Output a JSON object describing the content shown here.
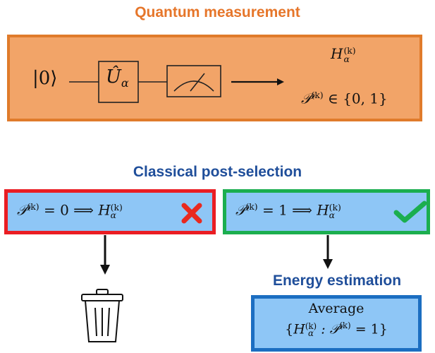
{
  "quantum_measurement": {
    "title": "Quantum measurement",
    "ket": "|0⟩",
    "unitary": "Û",
    "unitary_sub": "α",
    "output_h": "H",
    "output_h_sup": "(k)",
    "output_h_sub": "α",
    "output_p": "𝒫",
    "output_p_sup": "(k)",
    "output_p_rest": "∈ {0, 1}"
  },
  "post_selection": {
    "title": "Classical post-selection",
    "reject": {
      "p": "𝒫",
      "sup": "(k)",
      "rel": "= 0 ⟹",
      "h": "H",
      "h_sup": "(k)",
      "h_sub": "α"
    },
    "accept": {
      "p": "𝒫",
      "sup": "(k)",
      "rel": "= 1 ⟹",
      "h": "H",
      "h_sup": "(k)",
      "h_sub": "α"
    }
  },
  "energy_estimation": {
    "title": "Energy estimation",
    "line1": "Average",
    "line2_open": "{",
    "line2_h": "H",
    "line2_h_sup": "(k)",
    "line2_h_sub": "α",
    "line2_mid": ": 𝒫",
    "line2_p_sup": "(k)",
    "line2_close": "= 1}"
  },
  "colors": {
    "orange_title": "#E6762A",
    "blue_title": "#1F4E9A",
    "orange_fill": "#F2A468",
    "orange_border": "#E07B2B",
    "blue_fill": "#8EC6F6",
    "red_border": "#EA1D23",
    "green_border": "#1BAE4F",
    "energy_border": "#1C6EC1",
    "cross": "#E8291F",
    "check": "#1BAE4F"
  },
  "icons": [
    "cross-icon",
    "check-icon",
    "trash-icon",
    "meter-icon",
    "arrow-right-icon",
    "arrow-down-icon"
  ]
}
